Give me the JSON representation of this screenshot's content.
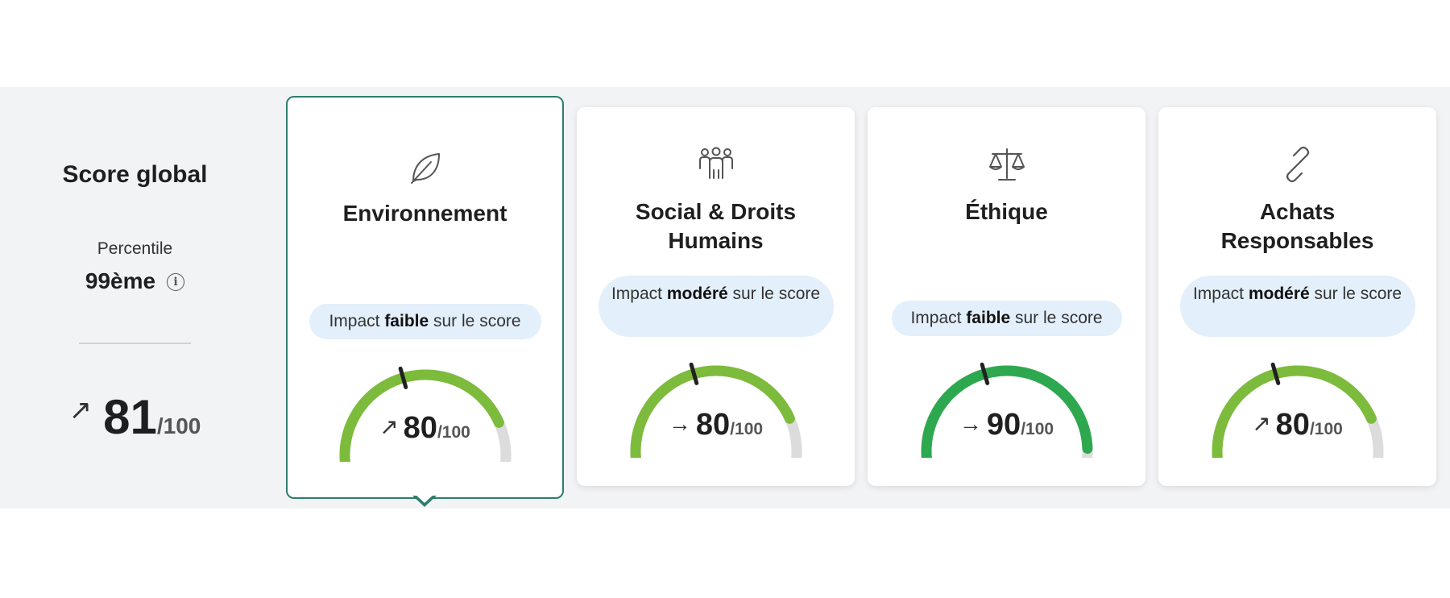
{
  "global": {
    "title": "Score global",
    "percentile_label": "Percentile",
    "percentile_value": "99ème",
    "info_symbol": "i",
    "trend_arrow": "↗",
    "score": "81",
    "denominator": "/100"
  },
  "cards": [
    {
      "title": "Environnement",
      "icon": "leaf-icon",
      "impact_pre": "Impact ",
      "impact_bold": "faible",
      "impact_post": " sur le score",
      "trend_arrow": "↗",
      "score": "80",
      "score_value": 80,
      "denominator": "/100",
      "selected": true
    },
    {
      "title": "Social & Droits Humains",
      "icon": "people-icon",
      "impact_pre": "Impact ",
      "impact_bold": "modéré",
      "impact_post": " sur le score",
      "trend_arrow": "→",
      "score": "80",
      "score_value": 80,
      "denominator": "/100",
      "selected": false
    },
    {
      "title": "Éthique",
      "icon": "scales-icon",
      "impact_pre": "Impact ",
      "impact_bold": "faible",
      "impact_post": " sur le score",
      "trend_arrow": "→",
      "score": "90",
      "score_value": 90,
      "denominator": "/100",
      "selected": false
    },
    {
      "title": "Achats Responsables",
      "icon": "chain-link-icon",
      "impact_pre": "Impact ",
      "impact_bold": "modéré",
      "impact_post": " sur le score",
      "trend_arrow": "↗",
      "score": "80",
      "score_value": 80,
      "denominator": "/100",
      "selected": false
    }
  ],
  "colors": {
    "band_bg": "#f2f3f5",
    "selected_border": "#2e7d6b",
    "gauge_green": "#7dbb3c",
    "gauge_dark_green": "#2ea84f",
    "gauge_track": "#dcdcdc",
    "pill_bg": "#e3effa"
  }
}
